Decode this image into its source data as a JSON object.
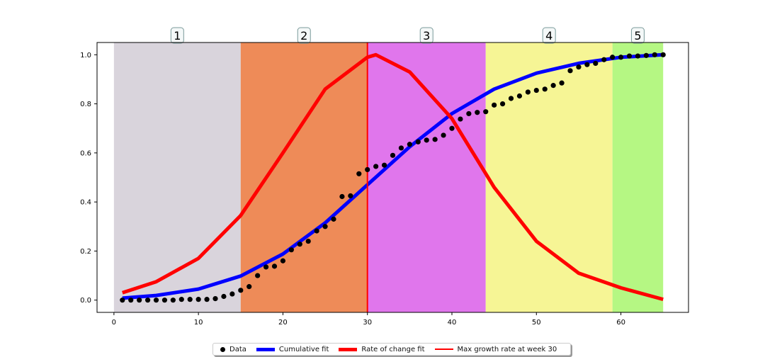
{
  "chart_data": {
    "type": "line",
    "xlim": [
      -2,
      68
    ],
    "ylim": [
      -0.05,
      1.05
    ],
    "x_ticks": [
      0,
      10,
      20,
      30,
      40,
      50,
      60
    ],
    "y_ticks": [
      0.0,
      0.2,
      0.4,
      0.6,
      0.8,
      1.0
    ],
    "x_tick_labels": [
      "0",
      "10",
      "20",
      "30",
      "40",
      "50",
      "60"
    ],
    "y_tick_labels": [
      "0.0",
      "0.2",
      "0.4",
      "0.6",
      "0.8",
      "1.0"
    ],
    "grid": false,
    "legend_placement": "bottom-center",
    "regions": [
      {
        "label": "1",
        "x0": 0,
        "x1": 15,
        "color": "#d9d4dc"
      },
      {
        "label": "2",
        "x0": 15,
        "x1": 30,
        "color": "#ee8b58"
      },
      {
        "label": "3",
        "x0": 30,
        "x1": 44,
        "color": "#e076ec"
      },
      {
        "label": "4",
        "x0": 44,
        "x1": 59,
        "color": "#f6f595"
      },
      {
        "label": "5",
        "x0": 59,
        "x1": 65,
        "color": "#b5f783"
      }
    ],
    "series": [
      {
        "name": "Data",
        "kind": "scatter",
        "color": "#000000",
        "x": [
          1,
          2,
          3,
          4,
          5,
          6,
          7,
          8,
          9,
          10,
          11,
          12,
          13,
          14,
          15,
          16,
          17,
          18,
          19,
          20,
          21,
          22,
          23,
          24,
          25,
          26,
          27,
          28,
          29,
          30,
          31,
          32,
          33,
          34,
          35,
          36,
          37,
          38,
          39,
          40,
          41,
          42,
          43,
          44,
          45,
          46,
          47,
          48,
          49,
          50,
          51,
          52,
          53,
          54,
          55,
          56,
          57,
          58,
          59,
          60,
          61,
          62,
          63,
          64,
          65
        ],
        "y": [
          0.0,
          0.0,
          0.0,
          0.0,
          0.0,
          0.0,
          0.0,
          0.003,
          0.003,
          0.003,
          0.003,
          0.006,
          0.015,
          0.025,
          0.04,
          0.055,
          0.1,
          0.135,
          0.138,
          0.16,
          0.205,
          0.228,
          0.24,
          0.282,
          0.3,
          0.33,
          0.422,
          0.425,
          0.515,
          0.532,
          0.545,
          0.55,
          0.59,
          0.62,
          0.635,
          0.645,
          0.652,
          0.655,
          0.672,
          0.7,
          0.738,
          0.76,
          0.765,
          0.768,
          0.795,
          0.8,
          0.822,
          0.832,
          0.848,
          0.855,
          0.86,
          0.875,
          0.885,
          0.935,
          0.95,
          0.96,
          0.965,
          0.98,
          0.99,
          0.99,
          0.995,
          0.995,
          0.997,
          1.0,
          1.0
        ]
      },
      {
        "name": "Cumulative fit",
        "kind": "line",
        "color": "#0000ff",
        "x": [
          1,
          5,
          10,
          15,
          20,
          25,
          30,
          35,
          40,
          45,
          50,
          55,
          60,
          65
        ],
        "y": [
          0.008,
          0.019,
          0.045,
          0.098,
          0.188,
          0.315,
          0.47,
          0.625,
          0.76,
          0.86,
          0.925,
          0.965,
          0.99,
          1.0
        ]
      },
      {
        "name": "Rate of change fit",
        "kind": "line",
        "color": "#ff0000",
        "x": [
          1,
          5,
          10,
          15,
          20,
          25,
          30,
          31,
          35,
          40,
          45,
          50,
          55,
          60,
          65
        ],
        "y": [
          0.03,
          0.075,
          0.17,
          0.345,
          0.6,
          0.86,
          0.99,
          1.0,
          0.93,
          0.74,
          0.46,
          0.24,
          0.11,
          0.05,
          0.003
        ]
      }
    ],
    "vline": {
      "name": "Max growth rate at week 30",
      "x": 30,
      "color": "#ff0000"
    }
  }
}
